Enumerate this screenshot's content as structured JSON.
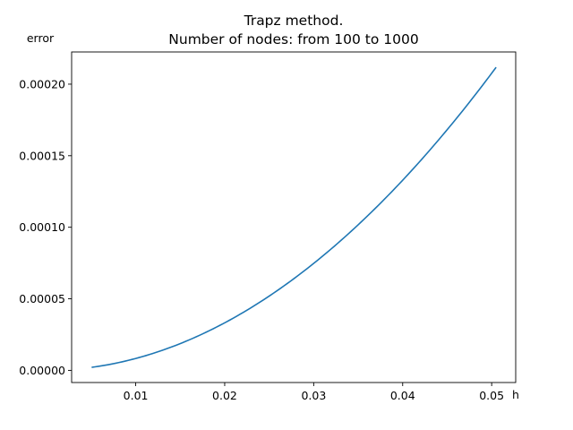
{
  "chart_data": {
    "type": "line",
    "title_line1": "Trapz method.",
    "title_line2": "Number of nodes: from 100 to 1000",
    "xlabel": "h",
    "ylabel": "error",
    "xlim": [
      0.0028,
      0.0527
    ],
    "ylim": [
      -8.5e-06,
      0.0002225
    ],
    "xticks": [
      0.01,
      0.02,
      0.03,
      0.04,
      0.05
    ],
    "xtick_labels": [
      "0.01",
      "0.02",
      "0.03",
      "0.04",
      "0.05"
    ],
    "yticks": [
      0.0,
      5e-05,
      0.0001,
      0.00015,
      0.0002
    ],
    "ytick_labels": [
      "0.00000",
      "0.00005",
      "0.00010",
      "0.00015",
      "0.00020"
    ],
    "grid": false,
    "series": [
      {
        "color": "#1f77b4",
        "x": [
          0.00505,
          0.01,
          0.015,
          0.02,
          0.025,
          0.03,
          0.035,
          0.04,
          0.045,
          0.0505
        ],
        "y": [
          2.1e-06,
          8.3e-06,
          1.87e-05,
          3.32e-05,
          5.19e-05,
          7.48e-05,
          0.0001018,
          0.0001329,
          0.0001682,
          0.0002118
        ]
      }
    ]
  }
}
